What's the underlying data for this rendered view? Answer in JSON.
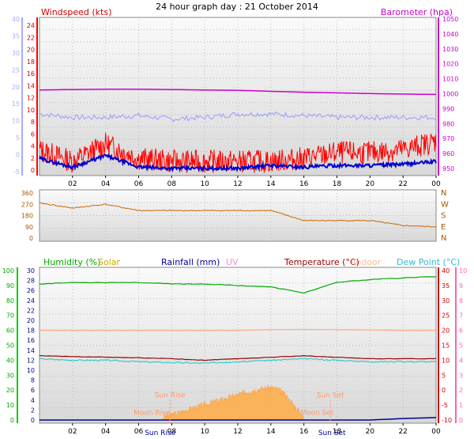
{
  "title": "24 hour graph day : 21 October 2014",
  "chart_data": [
    {
      "type": "line",
      "panel": "wind",
      "labels": {
        "windspeed": "Windspeed (kts)",
        "barometer": "Barometer (hpa)"
      },
      "x": [
        "00",
        "02",
        "04",
        "06",
        "08",
        "10",
        "12",
        "14",
        "16",
        "18",
        "20",
        "22",
        "00"
      ],
      "xticks": [
        "02",
        "04",
        "06",
        "08",
        "10",
        "12",
        "14",
        "16",
        "18",
        "20",
        "22",
        "00"
      ],
      "y_left_blue_ticks": [
        "40",
        "35",
        "30",
        "25",
        "20",
        "15",
        "10",
        "5",
        "0",
        "-5"
      ],
      "y_left_red_ticks": [
        "24",
        "22",
        "20",
        "18",
        "16",
        "14",
        "12",
        "10",
        "8",
        "6",
        "4",
        "2",
        "0"
      ],
      "y_right_ticks": [
        "1050",
        "1040",
        "1030",
        "1020",
        "1010",
        "1000",
        "990",
        "980",
        "970",
        "960",
        "950"
      ],
      "ylim_windspeed": [
        0,
        25
      ],
      "ylim_barometer": [
        947,
        1052
      ],
      "series": [
        {
          "name": "Barometer (hpa)",
          "color": "#cc00cc",
          "axis": "right",
          "values": [
            1002.5,
            1002.8,
            1003,
            1003,
            1002.8,
            1002.5,
            1002.3,
            1001.6,
            1001,
            1000.6,
            1000.1,
            999.8,
            999.5
          ]
        },
        {
          "name": "Wind direction band",
          "color": "#9999ff",
          "axis": "left_blue",
          "values": [
            12,
            11,
            11,
            11.5,
            10.5,
            11,
            12,
            12,
            11.5,
            11,
            11,
            11,
            11
          ]
        },
        {
          "name": "Gust",
          "color": "#ff0000",
          "axis": "left_red",
          "values": [
            3.5,
            1.5,
            4.5,
            2,
            1.5,
            1.5,
            1.5,
            1.5,
            2,
            3,
            3,
            3.5,
            5
          ]
        },
        {
          "name": "Average",
          "color": "#0000cc",
          "axis": "left_red",
          "values": [
            2,
            0.5,
            2.5,
            0.5,
            0.3,
            0.3,
            0.3,
            0.8,
            0.5,
            0.8,
            0.8,
            1,
            1.5
          ]
        }
      ]
    },
    {
      "type": "line",
      "panel": "direction",
      "y_ticks": [
        "360",
        "270",
        "180",
        "90",
        "0"
      ],
      "y_right_ticks": [
        "N",
        "W",
        "S",
        "E",
        "N"
      ],
      "ylim": [
        0,
        360
      ],
      "series": [
        {
          "name": "Wind direction",
          "color": "#cc6600",
          "values": [
            280,
            240,
            270,
            220,
            220,
            220,
            220,
            220,
            140,
            140,
            140,
            100,
            90
          ]
        }
      ]
    },
    {
      "type": "line",
      "panel": "climate",
      "labels": {
        "humidity": "Humidity (%)",
        "solar": "Solar",
        "rainfall": "Rainfall (mm)",
        "uv": "UV",
        "temperature": "Temperature (°C)",
        "indoor": "Indoor",
        "dewpoint": "Dew Point (°C)"
      },
      "xticks": [
        "02",
        "04",
        "06",
        "08",
        "10",
        "12",
        "14",
        "16",
        "18",
        "20",
        "22",
        "00"
      ],
      "y_humidity_ticks": [
        "100",
        "90",
        "80",
        "70",
        "60",
        "50",
        "40",
        "30",
        "20",
        "10",
        "0"
      ],
      "y_rain_ticks": [
        "30",
        "28",
        "26",
        "24",
        "22",
        "20",
        "18",
        "16",
        "14",
        "12",
        "10",
        "8",
        "6",
        "4",
        "2",
        "0"
      ],
      "y_temp_ticks": [
        "40",
        "35",
        "30",
        "25",
        "20",
        "15",
        "10",
        "5",
        "0",
        "-5",
        "-10"
      ],
      "y_uv_ticks": [
        "10",
        "9",
        "8",
        "7",
        "6",
        "5",
        "4",
        "3",
        "2",
        "1",
        "0"
      ],
      "ylim_humidity": [
        0,
        100
      ],
      "ylim_temperature": [
        -10,
        40
      ],
      "series": [
        {
          "name": "Humidity (%)",
          "color": "#00aa00",
          "axis": "humidity",
          "values": [
            91,
            92,
            92,
            92,
            91,
            91,
            90,
            89,
            85,
            92,
            94,
            95,
            96
          ]
        },
        {
          "name": "Indoor",
          "color": "#ffaa88",
          "axis": "temperature",
          "values": [
            20,
            20,
            20,
            20,
            20,
            20,
            20,
            20.2,
            20.3,
            20.2,
            20.1,
            20,
            20
          ]
        },
        {
          "name": "Temperature (°C)",
          "color": "#990000",
          "axis": "temperature",
          "values": [
            11.5,
            11.2,
            11,
            10.8,
            10.5,
            10,
            10.5,
            11,
            11.5,
            11,
            10.5,
            10.5,
            10.5
          ]
        },
        {
          "name": "Dew Point (°C)",
          "color": "#33cccc",
          "axis": "temperature",
          "values": [
            10.5,
            10,
            10,
            9.5,
            9.2,
            9,
            9.5,
            10,
            10.5,
            10,
            9.5,
            9.5,
            9.5
          ]
        },
        {
          "name": "Rainfall (mm)",
          "color": "#000099",
          "axis": "rain",
          "values": [
            0,
            0,
            0,
            0,
            0,
            0,
            0,
            0,
            0,
            0,
            0,
            0.3,
            0.5
          ]
        }
      ],
      "solar": {
        "color": "#ffaa44",
        "x": [
          7.5,
          8,
          9,
          10,
          11,
          12,
          13,
          14,
          14.5,
          15,
          15.5,
          16
        ],
        "values": [
          0,
          0.5,
          1.5,
          2.5,
          3.5,
          4.5,
          5.5,
          6,
          5.5,
          4,
          2,
          0
        ]
      },
      "annotations": [
        {
          "text": "Moon Rise",
          "hour": 6.8,
          "level": 1
        },
        {
          "text": "Sun Rise",
          "hour": 7.9,
          "level": 4.5
        },
        {
          "text": "Sun Set",
          "hour": 17.6,
          "level": 4.5
        },
        {
          "text": "Moon Set",
          "hour": 16.8,
          "level": 1
        },
        {
          "text": "Sun Rise",
          "hour": 7.3,
          "level": -1
        },
        {
          "text": "Sun Set",
          "hour": 17.7,
          "level": -1
        }
      ]
    }
  ]
}
